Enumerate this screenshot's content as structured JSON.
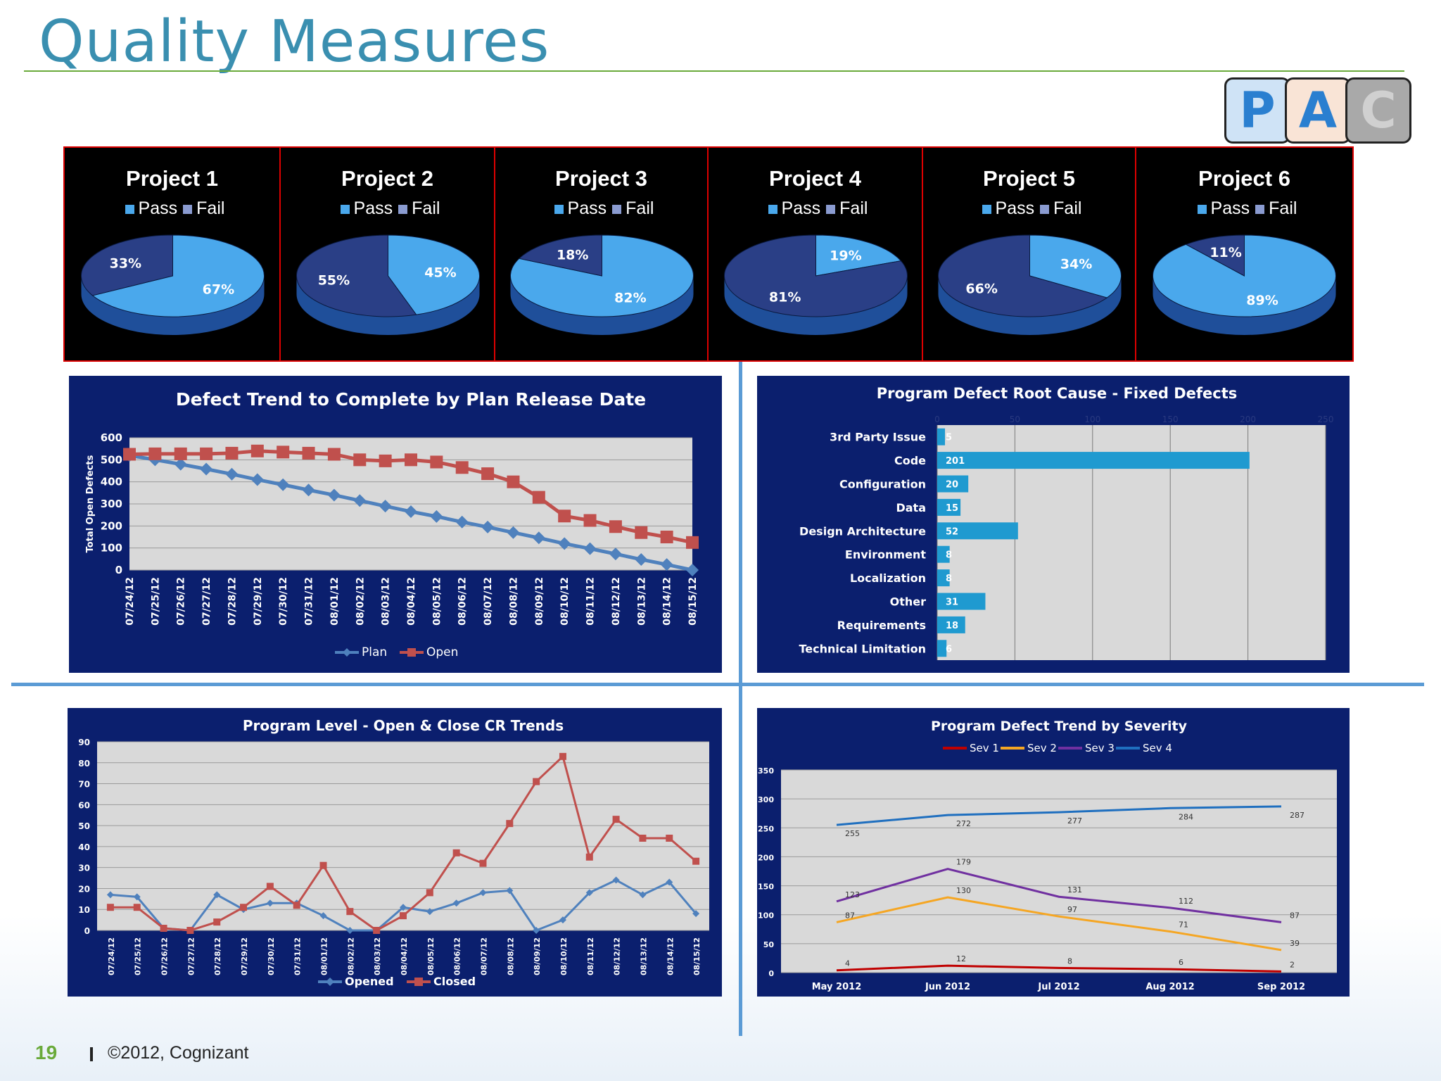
{
  "title": "Quality Measures",
  "badges": [
    "P",
    "A",
    "C"
  ],
  "legend_pass": "Pass",
  "legend_fail": "Fail",
  "colors": {
    "pass": "#4aa8ec",
    "fail": "#2a3f86",
    "panel": "#0b1f6e",
    "plan": "#4f81bd",
    "open": "#c0504d",
    "bar": "#1f9ad0"
  },
  "pies": [
    {
      "title": "Project 1",
      "pass": 67,
      "fail": 33,
      "pass_label": "67%",
      "fail_label": "33%"
    },
    {
      "title": "Project 2",
      "pass": 45,
      "fail": 55,
      "pass_label": "45%",
      "fail_label": "55%"
    },
    {
      "title": "Project 3",
      "pass": 82,
      "fail": 18,
      "pass_label": "82%",
      "fail_label": "18%"
    },
    {
      "title": "Project 4",
      "pass": 19,
      "fail": 81,
      "pass_label": "19%",
      "fail_label": "81%"
    },
    {
      "title": "Project 5",
      "pass": 34,
      "fail": 66,
      "pass_label": "34%",
      "fail_label": "66%"
    },
    {
      "title": "Project 6",
      "pass": 89,
      "fail": 11,
      "pass_label": "89%",
      "fail_label": "11%"
    }
  ],
  "chart_data": [
    {
      "type": "line",
      "title": "Defect Trend to Complete by Plan Release Date",
      "ylabel": "Total Open Defects",
      "ylim": [
        0,
        600
      ],
      "yticks": [
        0,
        100,
        200,
        300,
        400,
        500,
        600
      ],
      "categories": [
        "07/24/12",
        "07/25/12",
        "07/26/12",
        "07/27/12",
        "07/28/12",
        "07/29/12",
        "07/30/12",
        "07/31/12",
        "08/01/12",
        "08/02/12",
        "08/03/12",
        "08/04/12",
        "08/05/12",
        "08/06/12",
        "08/07/12",
        "08/08/12",
        "08/09/12",
        "08/10/12",
        "08/11/12",
        "08/12/12",
        "08/13/12",
        "08/14/12",
        "08/15/12"
      ],
      "series": [
        {
          "name": "Plan",
          "values": [
            520,
            500,
            480,
            458,
            435,
            410,
            387,
            363,
            340,
            315,
            290,
            265,
            243,
            218,
            195,
            170,
            146,
            120,
            97,
            73,
            48,
            25,
            0
          ]
        },
        {
          "name": "Open",
          "values": [
            525,
            527,
            527,
            527,
            530,
            540,
            535,
            530,
            525,
            500,
            495,
            500,
            490,
            465,
            437,
            400,
            330,
            245,
            225,
            197,
            170,
            150,
            125
          ]
        }
      ]
    },
    {
      "type": "bar",
      "orientation": "horizontal",
      "title": "Program Defect Root Cause  - Fixed Defects",
      "xlim": [
        0,
        250
      ],
      "xticks": [
        0,
        50,
        100,
        150,
        200,
        250
      ],
      "categories": [
        "3rd Party Issue",
        "Code",
        "Configuration",
        "Data",
        "Design Architecture",
        "Environment",
        "Localization",
        "Other",
        "Requirements",
        "Technical Limitation"
      ],
      "values": [
        5,
        201,
        20,
        15,
        52,
        8,
        8,
        31,
        18,
        6
      ]
    },
    {
      "type": "line",
      "title": "Program Level - Open & Close CR Trends",
      "ylim": [
        0,
        90
      ],
      "yticks": [
        0,
        10,
        20,
        30,
        40,
        50,
        60,
        70,
        80,
        90
      ],
      "categories": [
        "07/24/12",
        "07/25/12",
        "07/26/12",
        "07/27/12",
        "07/28/12",
        "07/29/12",
        "07/30/12",
        "07/31/12",
        "08/01/12",
        "08/02/12",
        "08/03/12",
        "08/04/12",
        "08/05/12",
        "08/06/12",
        "08/07/12",
        "08/08/12",
        "08/09/12",
        "08/10/12",
        "08/11/12",
        "08/12/12",
        "08/13/12",
        "08/14/12",
        "08/15/12"
      ],
      "series": [
        {
          "name": "Opened",
          "values": [
            17,
            16,
            1,
            0,
            17,
            10,
            13,
            13,
            7,
            0,
            0,
            11,
            9,
            13,
            18,
            19,
            0,
            5,
            18,
            24,
            17,
            23,
            8
          ]
        },
        {
          "name": "Closed",
          "values": [
            11,
            11,
            1,
            0,
            4,
            11,
            21,
            12,
            31,
            9,
            0,
            7,
            18,
            37,
            32,
            51,
            71,
            83,
            35,
            53,
            44,
            44,
            33
          ]
        }
      ]
    },
    {
      "type": "line",
      "title": "Program Defect Trend by Severity",
      "ylim": [
        0,
        350
      ],
      "yticks": [
        0,
        50,
        100,
        150,
        200,
        250,
        300,
        350
      ],
      "categories": [
        "May 2012",
        "Jun 2012",
        "Jul 2012",
        "Aug 2012",
        "Sep 2012"
      ],
      "series": [
        {
          "name": "Sev 1",
          "color": "#c00000",
          "values": [
            4,
            12,
            8,
            6,
            2
          ]
        },
        {
          "name": "Sev 2",
          "color": "#f5a623",
          "values": [
            87,
            130,
            97,
            71,
            39
          ]
        },
        {
          "name": "Sev 3",
          "color": "#7030a0",
          "values": [
            123,
            179,
            131,
            112,
            87
          ]
        },
        {
          "name": "Sev 4",
          "color": "#1f6fbf",
          "values": [
            255,
            272,
            277,
            284,
            287
          ]
        }
      ]
    }
  ],
  "footer": {
    "page": "19",
    "copyright": "©2012, Cognizant"
  }
}
